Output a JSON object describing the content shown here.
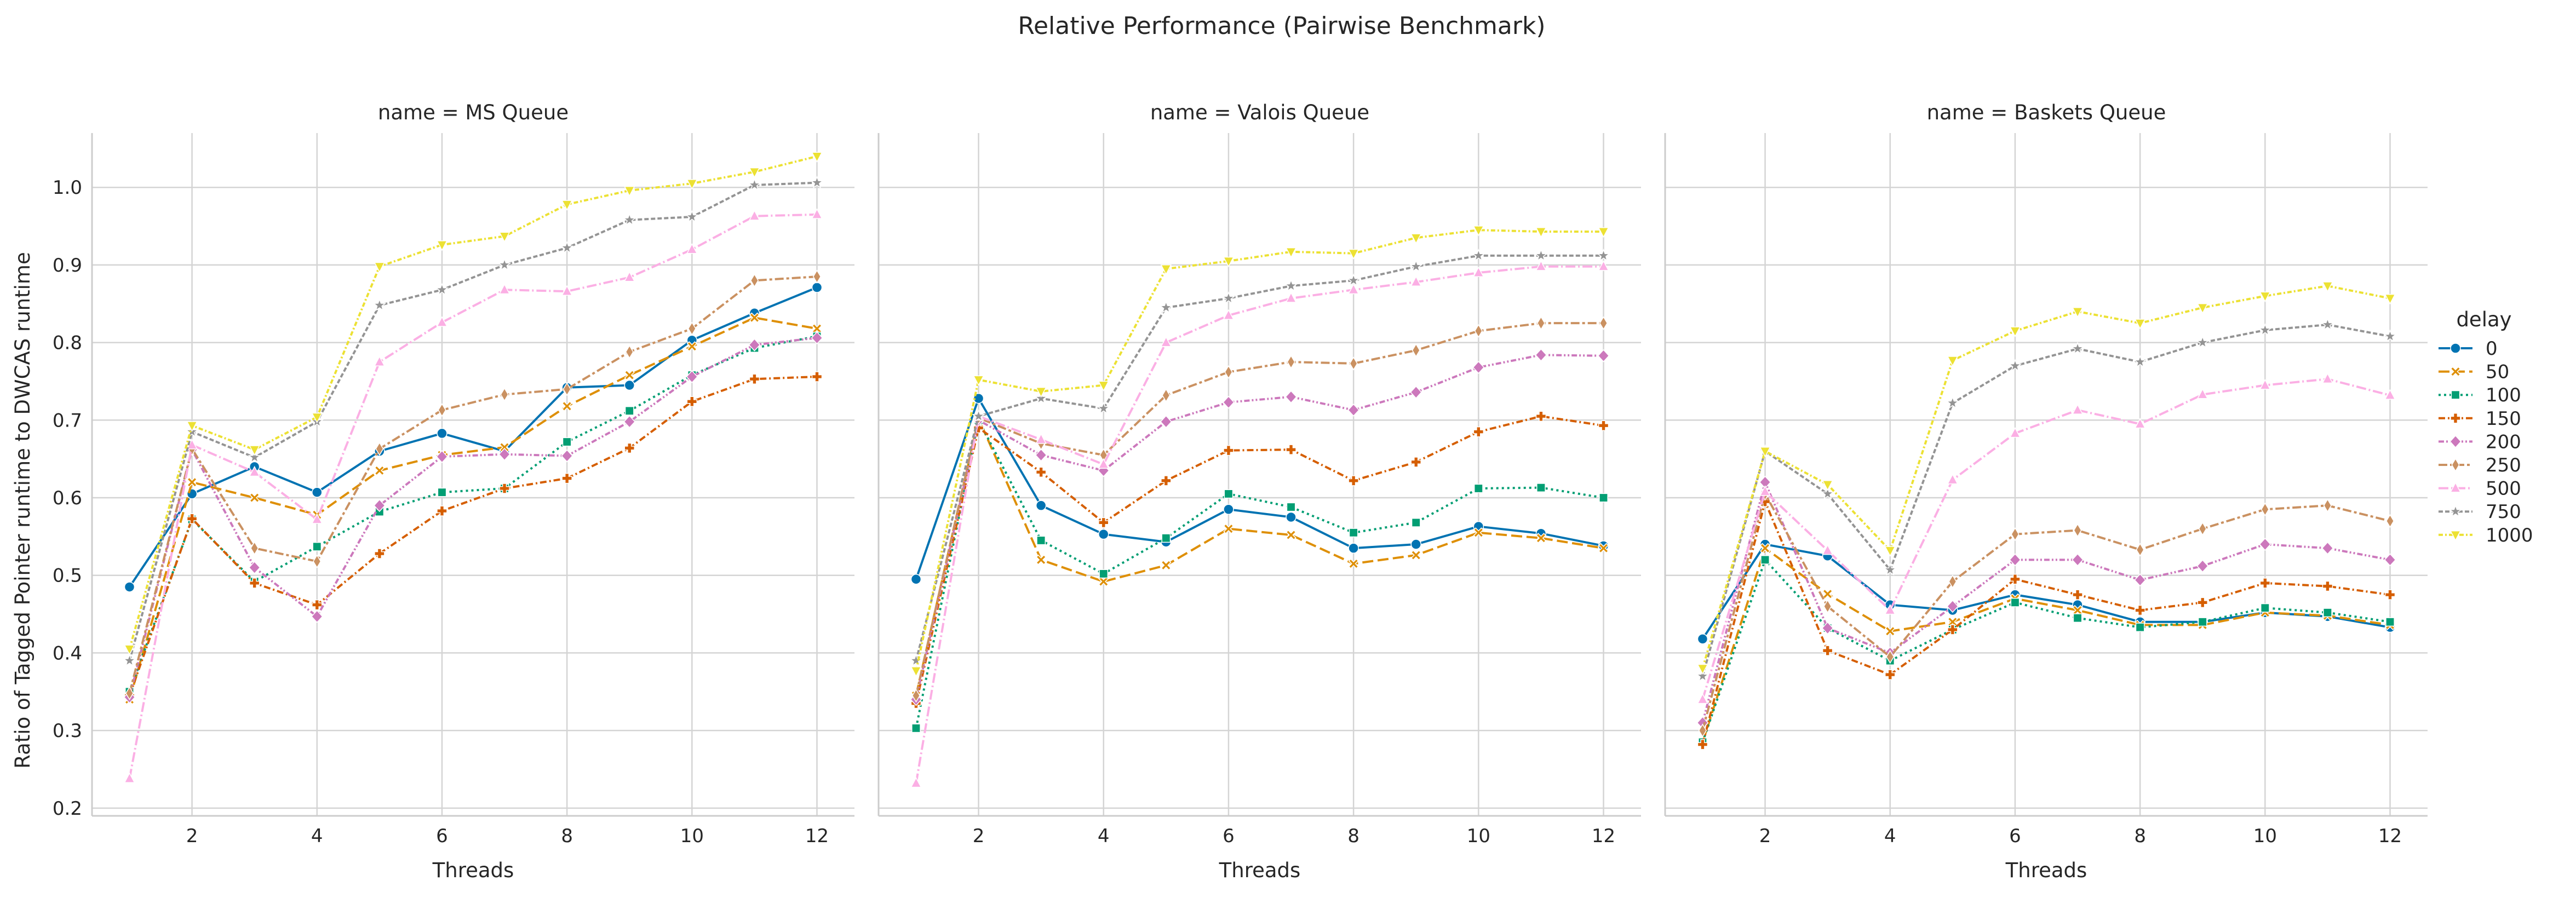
{
  "figure": {
    "title": "Relative Performance (Pairwise Benchmark)",
    "ylabel": "Ratio of Tagged Pointer runtime to DWCAS runtime",
    "legend_title": "delay",
    "legend_placement": "right"
  },
  "chart_data": [
    {
      "type": "line",
      "title": "name = MS Queue",
      "xlabel": "Threads",
      "ylabel": "Ratio of Tagged Pointer runtime to DWCAS runtime",
      "x": [
        1,
        2,
        3,
        4,
        5,
        6,
        7,
        8,
        9,
        10,
        11,
        12
      ],
      "xticks": [
        2,
        4,
        6,
        8,
        10,
        12
      ],
      "yticks": [
        0.2,
        0.3,
        0.4,
        0.5,
        0.6,
        0.7,
        0.8,
        0.9,
        1.0
      ],
      "xlim": [
        0.4,
        12.6
      ],
      "ylim": [
        0.19,
        1.07
      ],
      "grid": true,
      "series": [
        {
          "name": "0",
          "color": "#0173b2",
          "marker": "circle",
          "dash": "",
          "values": [
            0.485,
            0.605,
            0.64,
            0.607,
            0.66,
            0.683,
            0.66,
            0.742,
            0.745,
            0.803,
            0.838,
            0.871
          ]
        },
        {
          "name": "50",
          "color": "#de8f05",
          "marker": "x",
          "dash": "20 8",
          "values": [
            0.34,
            0.62,
            0.6,
            0.578,
            0.635,
            0.655,
            0.665,
            0.718,
            0.758,
            0.795,
            0.832,
            0.818
          ]
        },
        {
          "name": "100",
          "color": "#029e73",
          "marker": "square",
          "dash": "4 6",
          "values": [
            0.35,
            0.572,
            0.492,
            0.537,
            0.582,
            0.607,
            0.612,
            0.672,
            0.712,
            0.758,
            0.793,
            0.808
          ]
        },
        {
          "name": "150",
          "color": "#d55e00",
          "marker": "plus",
          "dash": "12 5 3 5",
          "values": [
            0.345,
            0.573,
            0.49,
            0.462,
            0.528,
            0.583,
            0.612,
            0.625,
            0.664,
            0.724,
            0.753,
            0.756
          ]
        },
        {
          "name": "200",
          "color": "#cc78bc",
          "marker": "diamond",
          "dash": "10 4 3 4 3 4",
          "values": [
            0.343,
            0.662,
            0.51,
            0.447,
            0.59,
            0.653,
            0.656,
            0.654,
            0.698,
            0.756,
            0.797,
            0.806
          ]
        },
        {
          "name": "250",
          "color": "#ca9161",
          "marker": "thin-diamond",
          "dash": "16 5 5 5",
          "values": [
            0.348,
            0.663,
            0.535,
            0.518,
            0.663,
            0.713,
            0.733,
            0.74,
            0.788,
            0.818,
            0.88,
            0.885
          ]
        },
        {
          "name": "500",
          "color": "#fbafe4",
          "marker": "triangle-up",
          "dash": "18 5 3 5",
          "values": [
            0.238,
            0.668,
            0.633,
            0.572,
            0.775,
            0.826,
            0.868,
            0.866,
            0.884,
            0.92,
            0.963,
            0.965
          ]
        },
        {
          "name": "750",
          "color": "#949494",
          "marker": "star",
          "dash": "8 4",
          "values": [
            0.39,
            0.685,
            0.652,
            0.698,
            0.848,
            0.868,
            0.9,
            0.922,
            0.958,
            0.962,
            1.003,
            1.006
          ]
        },
        {
          "name": "1000",
          "color": "#ece133",
          "marker": "triangle-down",
          "dash": "8 4 3 4",
          "values": [
            0.405,
            0.693,
            0.662,
            0.704,
            0.898,
            0.926,
            0.937,
            0.978,
            0.996,
            1.005,
            1.02,
            1.04
          ]
        }
      ]
    },
    {
      "type": "line",
      "title": "name = Valois Queue",
      "xlabel": "Threads",
      "x": [
        1,
        2,
        3,
        4,
        5,
        6,
        7,
        8,
        9,
        10,
        11,
        12
      ],
      "xticks": [
        2,
        4,
        6,
        8,
        10,
        12
      ],
      "xlim": [
        0.4,
        12.6
      ],
      "ylim": [
        0.19,
        1.07
      ],
      "grid": true,
      "series": [
        {
          "name": "0",
          "color": "#0173b2",
          "marker": "circle",
          "dash": "",
          "values": [
            0.495,
            0.728,
            0.59,
            0.553,
            0.543,
            0.585,
            0.575,
            0.535,
            0.54,
            0.563,
            0.554,
            0.538
          ]
        },
        {
          "name": "50",
          "color": "#de8f05",
          "marker": "x",
          "dash": "20 8",
          "values": [
            0.345,
            0.702,
            0.52,
            0.492,
            0.513,
            0.56,
            0.552,
            0.515,
            0.526,
            0.555,
            0.548,
            0.535
          ]
        },
        {
          "name": "100",
          "color": "#029e73",
          "marker": "square",
          "dash": "4 6",
          "values": [
            0.303,
            0.7,
            0.545,
            0.502,
            0.548,
            0.605,
            0.588,
            0.555,
            0.568,
            0.612,
            0.613,
            0.6
          ]
        },
        {
          "name": "150",
          "color": "#d55e00",
          "marker": "plus",
          "dash": "12 5 3 5",
          "values": [
            0.335,
            0.69,
            0.633,
            0.568,
            0.622,
            0.661,
            0.662,
            0.622,
            0.646,
            0.685,
            0.705,
            0.693
          ]
        },
        {
          "name": "200",
          "color": "#cc78bc",
          "marker": "diamond",
          "dash": "10 4 3 4 3 4",
          "values": [
            0.34,
            0.7,
            0.655,
            0.635,
            0.698,
            0.723,
            0.73,
            0.713,
            0.736,
            0.768,
            0.784,
            0.783
          ]
        },
        {
          "name": "250",
          "color": "#ca9161",
          "marker": "thin-diamond",
          "dash": "16 5 5 5",
          "values": [
            0.345,
            0.703,
            0.67,
            0.655,
            0.732,
            0.762,
            0.775,
            0.773,
            0.79,
            0.815,
            0.825,
            0.825
          ]
        },
        {
          "name": "500",
          "color": "#fbafe4",
          "marker": "triangle-up",
          "dash": "18 5 3 5",
          "values": [
            0.232,
            0.705,
            0.675,
            0.643,
            0.8,
            0.835,
            0.857,
            0.868,
            0.878,
            0.89,
            0.898,
            0.898
          ]
        },
        {
          "name": "750",
          "color": "#949494",
          "marker": "star",
          "dash": "8 4",
          "values": [
            0.39,
            0.705,
            0.728,
            0.715,
            0.845,
            0.857,
            0.873,
            0.88,
            0.898,
            0.912,
            0.912,
            0.912
          ]
        },
        {
          "name": "1000",
          "color": "#ece133",
          "marker": "triangle-down",
          "dash": "8 4 3 4",
          "values": [
            0.377,
            0.752,
            0.737,
            0.745,
            0.895,
            0.905,
            0.917,
            0.915,
            0.935,
            0.945,
            0.943,
            0.943
          ]
        }
      ]
    },
    {
      "type": "line",
      "title": "name = Baskets Queue",
      "xlabel": "Threads",
      "x": [
        1,
        2,
        3,
        4,
        5,
        6,
        7,
        8,
        9,
        10,
        11,
        12
      ],
      "xticks": [
        2,
        4,
        6,
        8,
        10,
        12
      ],
      "xlim": [
        0.4,
        12.6
      ],
      "ylim": [
        0.19,
        1.07
      ],
      "grid": true,
      "series": [
        {
          "name": "0",
          "color": "#0173b2",
          "marker": "circle",
          "dash": "",
          "values": [
            0.418,
            0.54,
            0.525,
            0.462,
            0.455,
            0.475,
            0.462,
            0.44,
            0.44,
            0.452,
            0.447,
            0.433
          ]
        },
        {
          "name": "50",
          "color": "#de8f05",
          "marker": "x",
          "dash": "20 8",
          "values": [
            0.285,
            0.535,
            0.476,
            0.428,
            0.44,
            0.47,
            0.455,
            0.436,
            0.436,
            0.452,
            0.448,
            0.436
          ]
        },
        {
          "name": "100",
          "color": "#029e73",
          "marker": "square",
          "dash": "4 6",
          "values": [
            0.285,
            0.52,
            0.432,
            0.39,
            0.43,
            0.465,
            0.445,
            0.433,
            0.44,
            0.458,
            0.452,
            0.44
          ]
        },
        {
          "name": "150",
          "color": "#d55e00",
          "marker": "plus",
          "dash": "12 5 3 5",
          "values": [
            0.282,
            0.595,
            0.403,
            0.372,
            0.43,
            0.495,
            0.475,
            0.455,
            0.465,
            0.49,
            0.486,
            0.475
          ]
        },
        {
          "name": "200",
          "color": "#cc78bc",
          "marker": "diamond",
          "dash": "10 4 3 4 3 4",
          "values": [
            0.31,
            0.62,
            0.432,
            0.4,
            0.46,
            0.52,
            0.52,
            0.494,
            0.512,
            0.54,
            0.535,
            0.52
          ]
        },
        {
          "name": "250",
          "color": "#ca9161",
          "marker": "thin-diamond",
          "dash": "16 5 5 5",
          "values": [
            0.3,
            0.605,
            0.46,
            0.395,
            0.492,
            0.553,
            0.558,
            0.533,
            0.56,
            0.585,
            0.59,
            0.57
          ]
        },
        {
          "name": "500",
          "color": "#fbafe4",
          "marker": "triangle-up",
          "dash": "18 5 3 5",
          "values": [
            0.34,
            0.608,
            0.532,
            0.455,
            0.623,
            0.683,
            0.713,
            0.695,
            0.733,
            0.745,
            0.753,
            0.732
          ]
        },
        {
          "name": "750",
          "color": "#949494",
          "marker": "star",
          "dash": "8 4",
          "values": [
            0.37,
            0.66,
            0.605,
            0.507,
            0.722,
            0.77,
            0.792,
            0.775,
            0.8,
            0.816,
            0.823,
            0.808
          ]
        },
        {
          "name": "1000",
          "color": "#ece133",
          "marker": "triangle-down",
          "dash": "8 4 3 4",
          "values": [
            0.38,
            0.66,
            0.617,
            0.532,
            0.777,
            0.815,
            0.84,
            0.825,
            0.845,
            0.86,
            0.873,
            0.857
          ]
        }
      ]
    }
  ]
}
